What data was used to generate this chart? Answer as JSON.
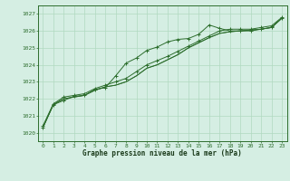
{
  "title": "Graphe pression niveau de la mer (hPa)",
  "xlabel": "Graphe pression niveau de la mer (hPa)",
  "xlim": [
    -0.5,
    23.5
  ],
  "ylim": [
    1019.5,
    1027.5
  ],
  "yticks": [
    1020,
    1021,
    1022,
    1023,
    1024,
    1025,
    1026,
    1027
  ],
  "xticks": [
    0,
    1,
    2,
    3,
    4,
    5,
    6,
    7,
    8,
    9,
    10,
    11,
    12,
    13,
    14,
    15,
    16,
    17,
    18,
    19,
    20,
    21,
    22,
    23
  ],
  "background_color": "#d5eee3",
  "grid_color": "#b0d9c0",
  "line_color": "#2d6e2d",
  "lines": [
    [
      1020.3,
      1021.65,
      1021.9,
      1022.15,
      1022.2,
      1022.55,
      1022.65,
      1023.35,
      1024.1,
      1024.4,
      1024.85,
      1025.05,
      1025.35,
      1025.5,
      1025.55,
      1025.8,
      1026.35,
      1026.15,
      1026.0,
      1026.0,
      1026.0,
      1026.1,
      1026.2,
      1026.75
    ],
    [
      1020.3,
      1021.65,
      1022.0,
      1022.1,
      1022.2,
      1022.5,
      1022.7,
      1022.8,
      1023.0,
      1023.35,
      1023.8,
      1024.0,
      1024.3,
      1024.6,
      1025.0,
      1025.3,
      1025.6,
      1025.85,
      1025.95,
      1026.0,
      1026.05,
      1026.1,
      1026.2,
      1026.75
    ],
    [
      1020.3,
      1021.65,
      1022.0,
      1022.1,
      1022.2,
      1022.5,
      1022.7,
      1022.8,
      1023.0,
      1023.35,
      1023.8,
      1024.0,
      1024.3,
      1024.6,
      1025.0,
      1025.3,
      1025.6,
      1025.85,
      1025.95,
      1026.0,
      1026.05,
      1026.1,
      1026.2,
      1026.75
    ],
    [
      1020.4,
      1021.7,
      1022.1,
      1022.2,
      1022.3,
      1022.6,
      1022.8,
      1023.0,
      1023.2,
      1023.6,
      1024.0,
      1024.25,
      1024.5,
      1024.8,
      1025.1,
      1025.4,
      1025.7,
      1026.0,
      1026.1,
      1026.1,
      1026.1,
      1026.2,
      1026.3,
      1026.8
    ]
  ]
}
